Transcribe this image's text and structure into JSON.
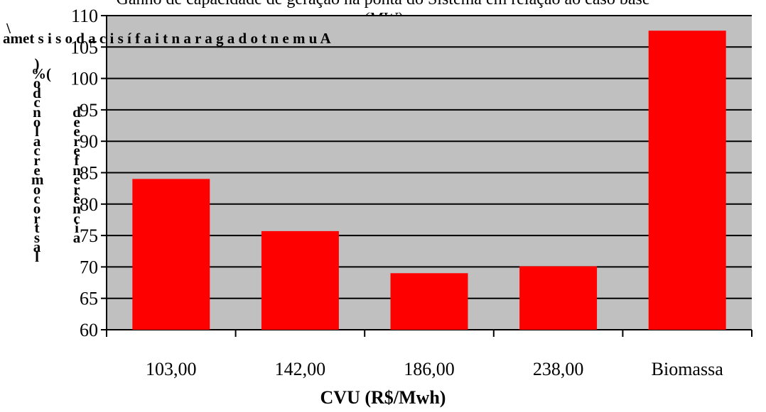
{
  "chart_data": {
    "type": "bar",
    "title": "Ganho de capacidade de geração na ponta do Sistema em relação ao caso base",
    "subtitle": "(MW)",
    "categories": [
      "103,00",
      "142,00",
      "186,00",
      "238,00",
      "Biomassa"
    ],
    "values": [
      84.0,
      75.7,
      69.0,
      70.1,
      107.6
    ],
    "xlabel": "CVU (R$/Mwh)",
    "ylabel": "Aumento da garantia física do sistema em relação ao caso base (%)",
    "ylim": [
      60,
      110
    ],
    "yticks": [
      60,
      65,
      70,
      75,
      80,
      85,
      90,
      95,
      100,
      105,
      110
    ],
    "grid": true,
    "legend": "none",
    "bar_color": "#ff0000",
    "plot_background": "#c0c0c0"
  },
  "ylabel_columns": {
    "col1": "\\\namet s i s o d a c i s í f a i t n a r a g a d o t n e m u A",
    "col2": ")\n%(\no\nd\nc\nn\no\nl\na\nc\nr\ne\nm\no\nc\no\nr\nt\ns\na\nl",
    "col3": "\n\n\n\n\nd\ne\ne\nr\ne\nf\nn\ne\nr\nê\nn\nc\ni\na"
  }
}
